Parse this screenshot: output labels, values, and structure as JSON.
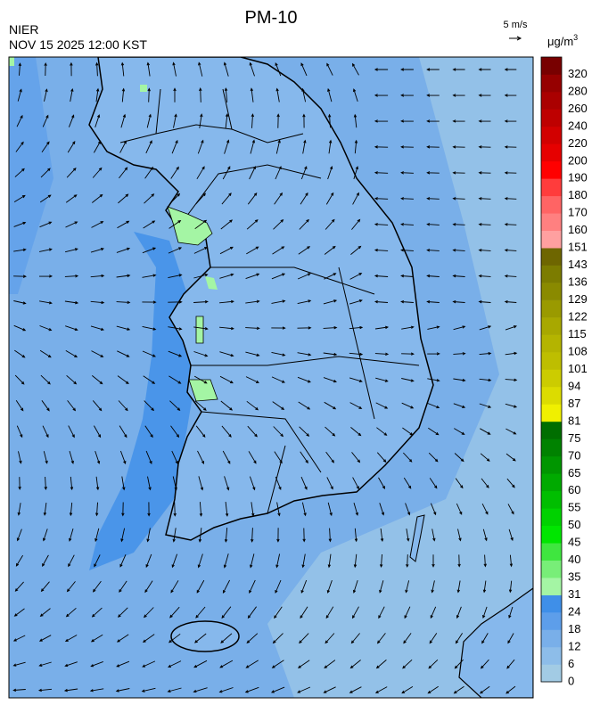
{
  "header": {
    "title": "PM-10",
    "source": "NIER",
    "timestamp": "NOV 15 2025 12:00 KST"
  },
  "wind_scale": {
    "label": "5 m/s"
  },
  "legend": {
    "unit": "μg/m",
    "unit_sup": "3",
    "ticks": [
      0,
      6,
      12,
      18,
      24,
      31,
      35,
      40,
      45,
      50,
      55,
      60,
      65,
      70,
      75,
      81,
      87,
      94,
      101,
      108,
      115,
      122,
      129,
      136,
      143,
      151,
      160,
      170,
      180,
      190,
      200,
      220,
      240,
      260,
      280,
      320
    ],
    "colors": [
      "#a2cbe4",
      "#8dbde9",
      "#79afe9",
      "#5d9eea",
      "#3f8fe8",
      "#a4f5a4",
      "#78ee78",
      "#3fe63f",
      "#00e600",
      "#00d200",
      "#00be00",
      "#00aa00",
      "#009600",
      "#008200",
      "#006e00",
      "#f0f000",
      "#dcdc00",
      "#cccc00",
      "#bebe00",
      "#b4b400",
      "#a8a800",
      "#9a9a00",
      "#8a8a00",
      "#7c7c00",
      "#6e6600",
      "#ffa0a0",
      "#ff8080",
      "#ff6464",
      "#ff3c3c",
      "#ff0000",
      "#e60000",
      "#d20000",
      "#be0000",
      "#aa0000",
      "#960000",
      "#780000"
    ]
  }
}
